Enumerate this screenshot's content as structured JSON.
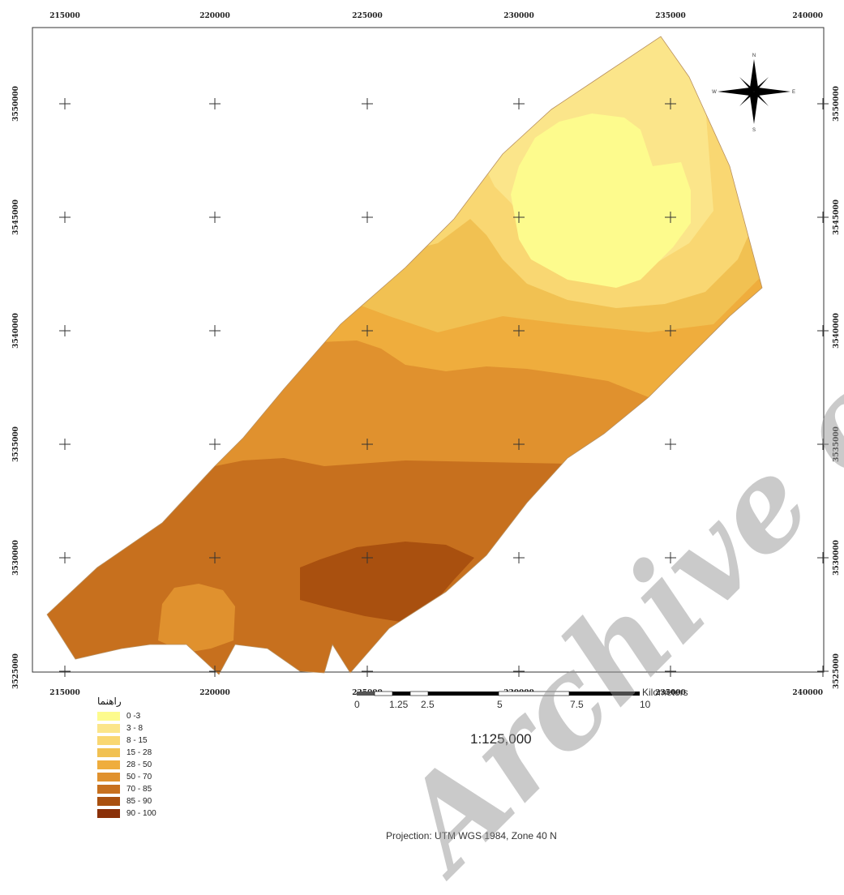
{
  "map": {
    "x_ticks": [
      "215000",
      "220000",
      "225000",
      "230000",
      "235000",
      "240000"
    ],
    "y_ticks": [
      "3550000",
      "3545000",
      "3540000",
      "3535000",
      "3530000",
      "3525000"
    ],
    "colors": [
      "#fdfb8d",
      "#fbe58a",
      "#f9d772",
      "#f1c152",
      "#efad3d",
      "#e0912e",
      "#c7701e",
      "#a9500f",
      "#8a3008"
    ]
  },
  "north_arrow": {
    "n": "N",
    "s": "S",
    "e": "E",
    "w": "W"
  },
  "legend": {
    "title": "راهنما",
    "items": [
      "0 -3",
      "3 - 8",
      "8 - 15",
      "15 - 28",
      "28 - 50",
      "50 - 70",
      "70 - 85",
      "85 - 90",
      "90 - 100"
    ]
  },
  "scale": {
    "ratio": "1:125,000",
    "labels": [
      "0",
      "1.25",
      "2.5",
      "5",
      "7.5",
      "10"
    ],
    "unit": "Kilometers"
  },
  "projection": "Projection: UTM WGS 1984, Zone 40 N",
  "watermark": "Archive of SID"
}
